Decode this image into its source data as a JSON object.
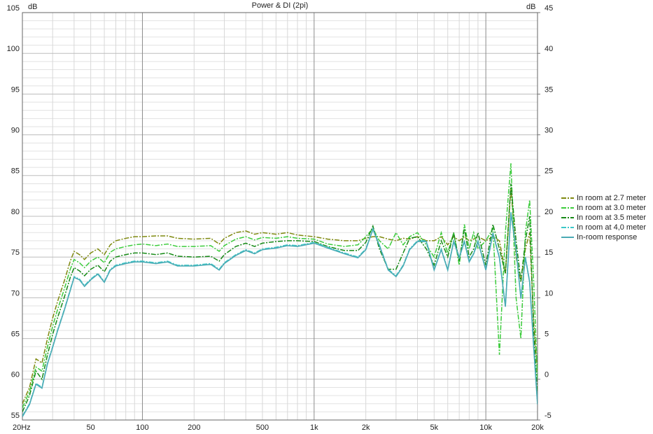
{
  "chart_data": {
    "type": "line",
    "title": "Power & DI (2pi)",
    "ylabel": "dB",
    "y2label": "dB",
    "xscale": "log",
    "grid": true,
    "xlim": [
      20,
      20000
    ],
    "xticks": [
      {
        "value": 20,
        "label": "20Hz"
      },
      50,
      100,
      200,
      500,
      {
        "value": 1000,
        "label": "1k"
      },
      {
        "value": 2000,
        "label": "2k"
      },
      {
        "value": 5000,
        "label": "5k"
      },
      {
        "value": 10000,
        "label": "10k"
      },
      {
        "value": 20000,
        "label": "20k"
      }
    ],
    "minor_xticks": [
      30,
      40,
      60,
      70,
      80,
      90,
      300,
      400,
      600,
      700,
      800,
      900,
      3000,
      4000,
      6000,
      7000,
      8000,
      9000
    ],
    "ylim": [
      55,
      105
    ],
    "yticks": [
      55,
      60,
      65,
      70,
      75,
      80,
      85,
      90,
      95,
      100,
      105
    ],
    "minor_yticks": [
      56,
      57,
      58,
      59,
      61,
      62,
      63,
      64,
      66,
      67,
      68,
      69,
      71,
      72,
      73,
      74,
      76,
      77,
      78,
      79,
      81,
      82,
      83,
      84,
      86,
      87,
      88,
      89,
      91,
      92,
      93,
      94,
      96,
      97,
      98,
      99,
      101,
      102,
      103,
      104
    ],
    "y2lim": [
      -5,
      45
    ],
    "y2ticks": [
      -5,
      0,
      5,
      10,
      15,
      20,
      25,
      30,
      35,
      40,
      45
    ],
    "legend": "right",
    "x": [
      20,
      22,
      24,
      26,
      28,
      30,
      32,
      35,
      38,
      40,
      43,
      46,
      50,
      55,
      60,
      65,
      70,
      80,
      90,
      100,
      120,
      140,
      160,
      200,
      250,
      280,
      300,
      350,
      400,
      450,
      500,
      600,
      700,
      800,
      1000,
      1200,
      1500,
      1800,
      2000,
      2200,
      2400,
      2700,
      3000,
      3300,
      3600,
      4000,
      4500,
      5000,
      5500,
      6000,
      6500,
      7000,
      7500,
      8000,
      8500,
      9000,
      10000,
      11000,
      12000,
      13000,
      14000,
      15000,
      16000,
      17000,
      18000,
      19000,
      20000
    ],
    "series": [
      {
        "name": "In room at 2.7 meter",
        "color": "#7f8a10",
        "dash": "dashdot",
        "values": [
          57,
          59,
          62.5,
          62,
          65,
          67.5,
          69.5,
          72,
          74.5,
          75.7,
          75.3,
          74.7,
          75.5,
          76,
          75.3,
          76.5,
          77,
          77.3,
          77.5,
          77.5,
          77.6,
          77.6,
          77.3,
          77.2,
          77.3,
          76.6,
          77.3,
          78,
          78.2,
          77.8,
          78,
          77.8,
          78,
          77.7,
          77.5,
          77.2,
          77,
          77,
          77.3,
          77.5,
          77.5,
          77.2,
          77,
          77.3,
          77.2,
          77.5,
          77,
          77,
          77.5,
          76.5,
          77.5,
          77,
          77.5,
          77,
          77.2,
          77.5,
          77,
          77.5,
          77,
          73,
          83.5,
          75,
          72,
          76,
          78,
          67,
          61
        ]
      },
      {
        "name": "In room at 3.0 meter",
        "color": "#3ccc3c",
        "dash": "dashdot",
        "values": [
          56.5,
          58.5,
          61.5,
          61,
          64,
          66.5,
          68.5,
          71,
          73.5,
          74.7,
          74.3,
          73.7,
          74.5,
          75,
          74.3,
          75.6,
          76,
          76.3,
          76.5,
          76.6,
          76.4,
          76.6,
          76.3,
          76.3,
          76.4,
          75.7,
          76.4,
          77.2,
          77.5,
          77.1,
          77.4,
          77.3,
          77.5,
          77.3,
          77.2,
          76.6,
          76.3,
          76.5,
          77.5,
          78.5,
          77,
          76,
          78,
          76.5,
          77.5,
          78,
          76.5,
          75,
          78,
          75.5,
          78,
          74,
          79,
          76,
          78,
          76,
          77,
          78.5,
          63,
          78,
          86.5,
          70,
          65,
          78,
          82,
          72,
          60
        ]
      },
      {
        "name": "In room at 3.5 meter",
        "color": "#168a16",
        "dash": "dashdot",
        "values": [
          56,
          58,
          61,
          60,
          63,
          65.5,
          67.5,
          70,
          72.5,
          73.7,
          73.3,
          72.7,
          73.5,
          74,
          73.2,
          74.5,
          75,
          75.3,
          75.5,
          75.5,
          75.3,
          75.5,
          75.1,
          75,
          75.1,
          74.5,
          75.3,
          76.3,
          76.7,
          76.3,
          76.7,
          76.9,
          77,
          77,
          76.9,
          76.3,
          75.8,
          75.8,
          76.8,
          78.8,
          76,
          73.5,
          73.5,
          75.5,
          77.3,
          77.5,
          76,
          74,
          77,
          75,
          78,
          74.5,
          78.5,
          75,
          76,
          78,
          74,
          79,
          76,
          73,
          84,
          77,
          72,
          77,
          80,
          66,
          58
        ]
      },
      {
        "name": "In room at 4,0 meter",
        "color": "#3cc8c8",
        "dash": "dashdot",
        "values": [
          55.5,
          57,
          59.5,
          59,
          62,
          64,
          66,
          68.5,
          71,
          72.6,
          72.3,
          71.5,
          72.3,
          73,
          72,
          73.5,
          74,
          74.3,
          74.5,
          74.5,
          74.3,
          74.5,
          74,
          74,
          74.2,
          73.5,
          74.3,
          75.3,
          75.9,
          75.5,
          76,
          76.2,
          76.5,
          76.4,
          76.8,
          76.2,
          75.5,
          75,
          76,
          78.5,
          76.5,
          73.5,
          72.7,
          74,
          76,
          77,
          77,
          73.5,
          76,
          73.5,
          77,
          75,
          77,
          74.5,
          75.5,
          77,
          73.5,
          78,
          75,
          69,
          80.5,
          76,
          70,
          75,
          72,
          64,
          57
        ]
      },
      {
        "name": "In-room response",
        "color": "#4aaab4",
        "dash": "solid",
        "values": [
          55.4,
          56.9,
          59.4,
          58.9,
          61.9,
          63.9,
          65.9,
          68.4,
          70.9,
          72.5,
          72.2,
          71.4,
          72.2,
          72.9,
          71.9,
          73.4,
          73.9,
          74.2,
          74.4,
          74.4,
          74.2,
          74.4,
          73.9,
          73.9,
          74.1,
          73.4,
          74.2,
          75.2,
          75.8,
          75.4,
          75.9,
          76.1,
          76.4,
          76.3,
          76.7,
          76.1,
          75.4,
          74.9,
          75.9,
          78.4,
          76.4,
          73.4,
          72.6,
          73.9,
          75.9,
          76.9,
          76.9,
          73.4,
          75.9,
          73.4,
          76.9,
          74.9,
          76.9,
          74.4,
          75.4,
          76.9,
          73.4,
          77.9,
          74.9,
          68.9,
          80.4,
          75.9,
          69.9,
          74.9,
          71.9,
          63.9,
          56.9
        ]
      }
    ]
  }
}
